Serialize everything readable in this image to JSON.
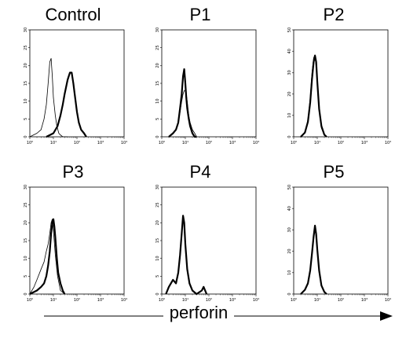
{
  "chart_data": [
    {
      "type": "line",
      "title": "Control",
      "ylim": [
        0,
        30
      ],
      "yticks": [
        "0",
        "5",
        "10",
        "15",
        "20",
        "25",
        "30"
      ],
      "xticks": [
        "10⁰",
        "10¹",
        "10²",
        "10³",
        "10⁴"
      ],
      "xscale": "log",
      "xlim": [
        1,
        10000
      ],
      "series": [
        {
          "style": "thin",
          "x": [
            1,
            2,
            3,
            4,
            5,
            6,
            7,
            8,
            9,
            10,
            12,
            14,
            17,
            20,
            25,
            30,
            40
          ],
          "values": [
            0,
            1,
            2,
            5,
            9,
            15,
            21,
            22,
            17,
            11,
            6,
            3,
            1,
            0.5,
            0,
            0,
            0
          ]
        },
        {
          "style": "thick",
          "x": [
            5,
            10,
            15,
            20,
            25,
            30,
            40,
            50,
            60,
            70,
            80,
            100,
            120,
            150,
            200,
            250
          ],
          "values": [
            0,
            1,
            3,
            6,
            9,
            12,
            16,
            18,
            18,
            15,
            12,
            7,
            4,
            2,
            1,
            0
          ]
        }
      ]
    },
    {
      "type": "line",
      "title": "P1",
      "ylim": [
        0,
        30
      ],
      "yticks": [
        "0",
        "5",
        "10",
        "15",
        "20",
        "25",
        "30"
      ],
      "xticks": [
        "10⁰",
        "10¹",
        "10²",
        "10³",
        "10⁴"
      ],
      "xscale": "log",
      "xlim": [
        1,
        10000
      ],
      "series": [
        {
          "style": "thin",
          "x": [
            2,
            3,
            4,
            5,
            6,
            7,
            8,
            9,
            10,
            11,
            12,
            14,
            16,
            20,
            25,
            30
          ],
          "values": [
            0,
            1,
            2,
            4,
            7,
            10,
            12,
            13,
            13,
            12,
            10,
            6,
            4,
            2,
            1,
            0
          ]
        },
        {
          "style": "thick",
          "x": [
            2,
            3,
            4,
            5,
            6,
            7,
            8,
            9,
            10,
            11,
            12,
            14,
            16,
            20,
            25,
            30
          ],
          "values": [
            0,
            1,
            2,
            4,
            8,
            12,
            17,
            19,
            15,
            11,
            8,
            5,
            3,
            1,
            0,
            0
          ]
        }
      ]
    },
    {
      "type": "line",
      "title": "P2",
      "ylim": [
        0,
        50
      ],
      "yticks": [
        "0",
        "10",
        "20",
        "30",
        "40",
        "50"
      ],
      "xticks": [
        "10⁰",
        "10¹",
        "10²",
        "10³",
        "10⁴"
      ],
      "xscale": "log",
      "xlim": [
        1,
        10000
      ],
      "series": [
        {
          "style": "thin",
          "x": [
            2,
            3,
            4,
            5,
            6,
            7,
            8,
            9,
            10,
            12,
            15,
            20,
            25
          ],
          "values": [
            0,
            2,
            8,
            18,
            30,
            37,
            38,
            33,
            24,
            12,
            4,
            1,
            0
          ]
        },
        {
          "style": "thick",
          "x": [
            2,
            3,
            4,
            5,
            6,
            7,
            8,
            9,
            10,
            12,
            15,
            20,
            25
          ],
          "values": [
            0,
            2,
            7,
            16,
            27,
            35,
            38,
            35,
            26,
            13,
            5,
            1,
            0
          ]
        }
      ]
    },
    {
      "type": "line",
      "title": "P3",
      "ylim": [
        0,
        30
      ],
      "yticks": [
        "0",
        "5",
        "10",
        "15",
        "20",
        "25",
        "30"
      ],
      "xticks": [
        "10⁰",
        "10¹",
        "10²",
        "10³",
        "10⁴"
      ],
      "xscale": "log",
      "xlim": [
        1,
        10000
      ],
      "series": [
        {
          "style": "thin",
          "x": [
            1,
            1.5,
            2,
            3,
            4,
            5,
            6,
            7,
            8,
            9,
            10,
            12,
            15,
            20,
            30
          ],
          "values": [
            0,
            2,
            4,
            7,
            9,
            12,
            14,
            17,
            20,
            21,
            18,
            11,
            5,
            1,
            0
          ]
        },
        {
          "style": "thick",
          "x": [
            1,
            2,
            3,
            4,
            5,
            6,
            7,
            8,
            9,
            10,
            11,
            12,
            14,
            16,
            20,
            25,
            30
          ],
          "values": [
            0,
            1,
            2,
            3,
            5,
            8,
            12,
            17,
            20,
            21,
            19,
            16,
            10,
            6,
            3,
            1,
            0
          ]
        }
      ]
    },
    {
      "type": "line",
      "title": "P4",
      "ylim": [
        0,
        30
      ],
      "yticks": [
        "0",
        "5",
        "10",
        "15",
        "20",
        "25",
        "30"
      ],
      "xticks": [
        "10⁰",
        "10¹",
        "10²",
        "10³",
        "10⁴"
      ],
      "xscale": "log",
      "xlim": [
        1,
        10000
      ],
      "series": [
        {
          "style": "thin",
          "x": [
            1.5,
            2,
            3,
            4,
            5,
            6,
            7,
            8,
            9,
            10,
            12,
            15,
            20,
            30,
            50,
            60,
            80
          ],
          "values": [
            0,
            2,
            4,
            3,
            6,
            10,
            16,
            21,
            20,
            14,
            7,
            3,
            1,
            0,
            1,
            2,
            0
          ]
        },
        {
          "style": "thick",
          "x": [
            1.5,
            2,
            3,
            4,
            5,
            6,
            7,
            8,
            9,
            10,
            12,
            15,
            20,
            30,
            50,
            60,
            80
          ],
          "values": [
            0,
            2,
            4,
            3,
            6,
            11,
            17,
            22,
            20,
            14,
            7,
            3,
            1,
            0,
            1,
            2,
            0
          ]
        }
      ]
    },
    {
      "type": "line",
      "title": "P5",
      "ylim": [
        0,
        50
      ],
      "yticks": [
        "0",
        "10",
        "20",
        "30",
        "40",
        "50"
      ],
      "xticks": [
        "10⁰",
        "10¹",
        "10²",
        "10³",
        "10⁴"
      ],
      "xscale": "log",
      "xlim": [
        1,
        10000
      ],
      "series": [
        {
          "style": "thin",
          "x": [
            2,
            3,
            4,
            5,
            6,
            7,
            8,
            9,
            10,
            12,
            15,
            20,
            25
          ],
          "values": [
            0,
            2,
            5,
            10,
            18,
            26,
            30,
            27,
            20,
            10,
            4,
            1,
            0
          ]
        },
        {
          "style": "thick",
          "x": [
            2,
            3,
            4,
            5,
            6,
            7,
            8,
            9,
            10,
            12,
            15,
            20,
            25
          ],
          "values": [
            0,
            2,
            5,
            11,
            19,
            27,
            32,
            28,
            21,
            11,
            4,
            1,
            0
          ]
        }
      ]
    }
  ],
  "xaxis": {
    "label": "perforin"
  }
}
